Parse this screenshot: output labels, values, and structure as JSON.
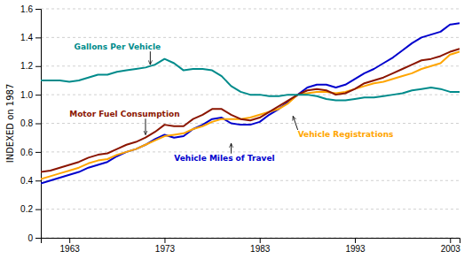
{
  "chart_data": {
    "type": "line",
    "ylabel": "INDEXED on 1987",
    "x": [
      1960,
      1961,
      1962,
      1963,
      1964,
      1965,
      1966,
      1967,
      1968,
      1969,
      1970,
      1971,
      1972,
      1973,
      1974,
      1975,
      1976,
      1977,
      1978,
      1979,
      1980,
      1981,
      1982,
      1983,
      1984,
      1985,
      1986,
      1987,
      1988,
      1989,
      1990,
      1991,
      1992,
      1993,
      1994,
      1995,
      1996,
      1997,
      1998,
      1999,
      2000,
      2001,
      2002,
      2003,
      2004
    ],
    "xlim": [
      1960,
      2004
    ],
    "xticks": [
      1963,
      1973,
      1983,
      1993,
      2003
    ],
    "ylim": [
      0,
      1.6
    ],
    "yticks": [
      0,
      0.2,
      0.4,
      0.6,
      0.8,
      {
        "value": 1.0,
        "label": "1.0"
      },
      1.2,
      1.4,
      1.6
    ],
    "grid": true,
    "series": [
      {
        "color": "#0000CD",
        "values": [
          0.38,
          0.4,
          0.42,
          0.44,
          0.46,
          0.49,
          0.51,
          0.53,
          0.57,
          0.6,
          0.62,
          0.65,
          0.69,
          0.72,
          0.7,
          0.71,
          0.76,
          0.79,
          0.83,
          0.84,
          0.8,
          0.79,
          0.79,
          0.81,
          0.86,
          0.9,
          0.95,
          1.0,
          1.05,
          1.07,
          1.07,
          1.05,
          1.07,
          1.11,
          1.15,
          1.18,
          1.22,
          1.26,
          1.31,
          1.36,
          1.4,
          1.42,
          1.44,
          1.49,
          1.5
        ]
      },
      {
        "color": "#FFA500",
        "values": [
          0.41,
          0.43,
          0.45,
          0.47,
          0.49,
          0.52,
          0.54,
          0.55,
          0.58,
          0.6,
          0.62,
          0.65,
          0.68,
          0.71,
          0.72,
          0.73,
          0.76,
          0.78,
          0.81,
          0.83,
          0.83,
          0.83,
          0.84,
          0.86,
          0.88,
          0.9,
          0.94,
          1.0,
          1.01,
          1.02,
          1.02,
          1.01,
          1.02,
          1.04,
          1.06,
          1.08,
          1.09,
          1.11,
          1.13,
          1.15,
          1.18,
          1.2,
          1.22,
          1.28,
          1.3
        ]
      },
      {
        "color": "#8B1500",
        "values": [
          0.46,
          0.47,
          0.49,
          0.51,
          0.53,
          0.56,
          0.58,
          0.59,
          0.62,
          0.65,
          0.67,
          0.7,
          0.74,
          0.79,
          0.78,
          0.78,
          0.83,
          0.86,
          0.9,
          0.9,
          0.86,
          0.83,
          0.82,
          0.84,
          0.88,
          0.92,
          0.96,
          1.0,
          1.03,
          1.04,
          1.03,
          1.0,
          1.01,
          1.04,
          1.08,
          1.1,
          1.12,
          1.15,
          1.18,
          1.21,
          1.24,
          1.25,
          1.27,
          1.3,
          1.32
        ]
      },
      {
        "color": "#008B8B",
        "values": [
          1.1,
          1.1,
          1.1,
          1.09,
          1.1,
          1.12,
          1.14,
          1.14,
          1.16,
          1.17,
          1.18,
          1.19,
          1.21,
          1.25,
          1.22,
          1.17,
          1.18,
          1.18,
          1.17,
          1.13,
          1.06,
          1.02,
          1.0,
          1.0,
          0.99,
          0.99,
          1.0,
          1.0,
          1.0,
          0.99,
          0.97,
          0.96,
          0.96,
          0.97,
          0.98,
          0.98,
          0.99,
          1.0,
          1.01,
          1.03,
          1.04,
          1.05,
          1.04,
          1.02,
          1.02
        ]
      }
    ],
    "annotations": [
      {
        "text": "Gallons Per Vehicle",
        "x": 1971.5,
        "y": 1.21,
        "text_x": 1963.5,
        "text_y": 1.33,
        "color": "#008B8B"
      },
      {
        "text": "Motor Fuel Consumption",
        "x": 1971,
        "y": 0.72,
        "text_x": 1963,
        "text_y": 0.86,
        "color": "#8B1500"
      },
      {
        "text": "Vehicle Registrations",
        "x": 1986.5,
        "y": 0.85,
        "text_x": 1987,
        "text_y": 0.72,
        "color": "#FFA500"
      },
      {
        "text": "Vehicle Miles of Travel",
        "x": 1980,
        "y": 0.66,
        "text_x": 1974,
        "text_y": 0.555,
        "color": "#0000CD"
      }
    ]
  }
}
